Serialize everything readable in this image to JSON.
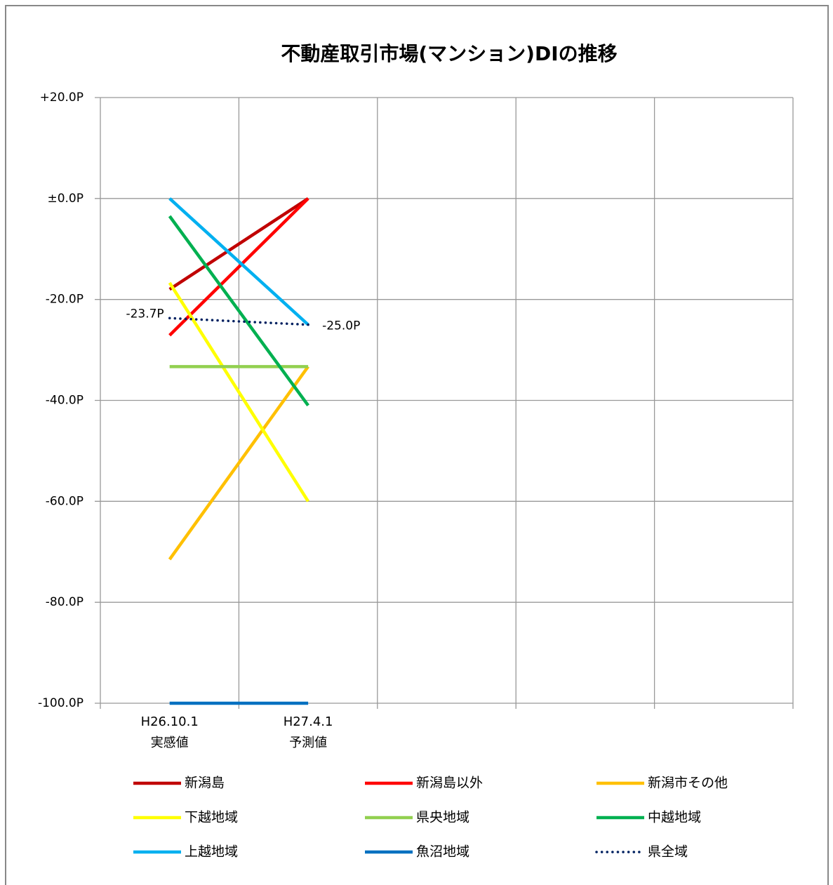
{
  "chart_data": {
    "type": "line",
    "title": "不動産取引市場(マンション)DIの推移",
    "categories": [
      "H26.10.1\n実感値",
      "H27.4.1\n予測値",
      null,
      null,
      null
    ],
    "ylim": [
      -100,
      20
    ],
    "yticks": [
      {
        "value": 20,
        "label": "+20.0P"
      },
      {
        "value": 0,
        "label": "±0.0P"
      },
      {
        "value": -20,
        "label": "-20.0P"
      },
      {
        "value": -40,
        "label": "-40.0P"
      },
      {
        "value": -60,
        "label": "-60.0P"
      },
      {
        "value": -80,
        "label": "-80.0P"
      },
      {
        "value": -100,
        "label": "-100.0P"
      }
    ],
    "grid": true,
    "series": [
      {
        "name": "新潟島",
        "color": "#c00000",
        "values": [
          -18,
          0,
          null,
          null,
          null
        ]
      },
      {
        "name": "新潟島以外",
        "color": "#ff0000",
        "values": [
          -27.1,
          0,
          null,
          null,
          null
        ]
      },
      {
        "name": "新潟市その他",
        "color": "#ffc000",
        "values": [
          -71.5,
          -33.3,
          null,
          null,
          null
        ]
      },
      {
        "name": "下越地域",
        "color": "#ffff00",
        "values": [
          -16.7,
          -60,
          null,
          null,
          null
        ]
      },
      {
        "name": "県央地域",
        "color": "#92d050",
        "values": [
          -33.3,
          -33.3,
          null,
          null,
          null
        ]
      },
      {
        "name": "中越地域",
        "color": "#00b050",
        "values": [
          -3.5,
          -41,
          null,
          null,
          null
        ]
      },
      {
        "name": "上越地域",
        "color": "#00b0f0",
        "values": [
          0,
          -25,
          null,
          null,
          null
        ]
      },
      {
        "name": "魚沼地域",
        "color": "#0070c0",
        "values": [
          -100,
          -100,
          null,
          null,
          null
        ]
      },
      {
        "name": "県全域",
        "color": "#002060",
        "style": "dotted",
        "values": [
          -23.7,
          -25,
          null,
          null,
          null
        ],
        "value_labels": [
          "-23.7P",
          "-25.0P",
          null,
          null,
          null
        ]
      }
    ]
  }
}
